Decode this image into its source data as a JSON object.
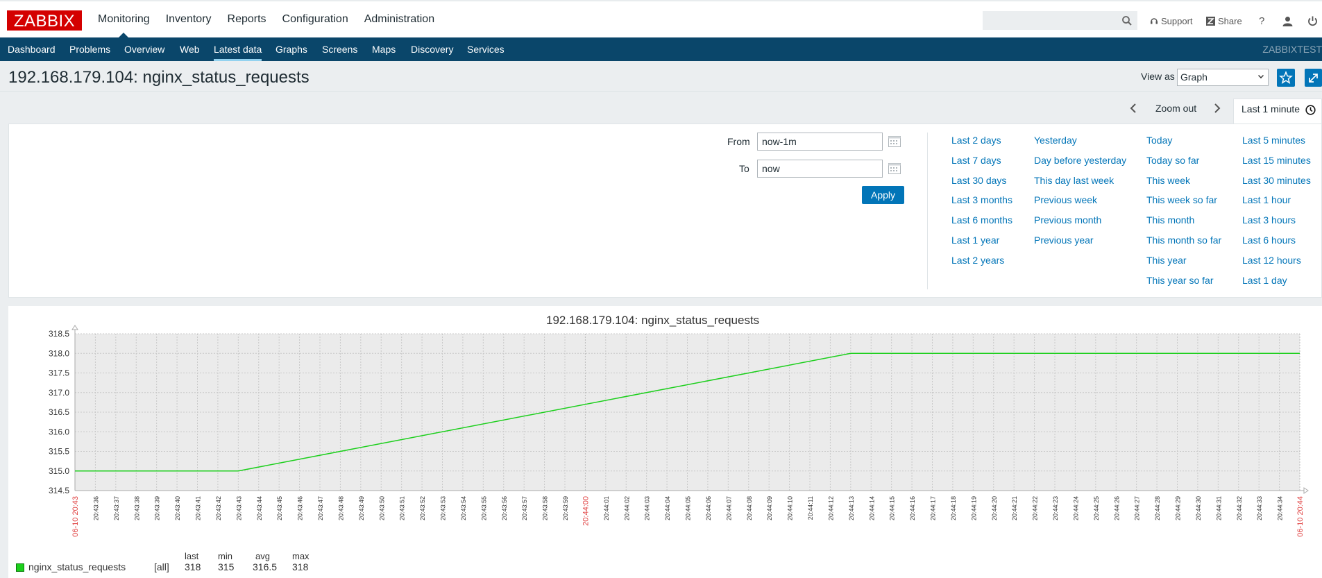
{
  "header": {
    "logo": "ZABBIX",
    "nav": [
      "Monitoring",
      "Inventory",
      "Reports",
      "Configuration",
      "Administration"
    ],
    "support": "Support",
    "share": "Share",
    "help": "?"
  },
  "subnav": {
    "items": [
      "Dashboard",
      "Problems",
      "Overview",
      "Web",
      "Latest data",
      "Graphs",
      "Screens",
      "Maps",
      "Discovery",
      "Services"
    ],
    "active": "Latest data",
    "brand": "ZABBIXTEST"
  },
  "page": {
    "title": "192.168.179.104: nginx_status_requests",
    "view_as_label": "View as",
    "view_as_value": "Graph"
  },
  "time": {
    "zoom_out": "Zoom out",
    "period_tab": "Last 1 minute",
    "from_label": "From",
    "from_value": "now-1m",
    "to_label": "To",
    "to_value": "now",
    "apply": "Apply",
    "quick_columns": [
      [
        "Last 2 days",
        "Last 7 days",
        "Last 30 days",
        "Last 3 months",
        "Last 6 months",
        "Last 1 year",
        "Last 2 years"
      ],
      [
        "Yesterday",
        "Day before yesterday",
        "This day last week",
        "Previous week",
        "Previous month",
        "Previous year"
      ],
      [
        "Today",
        "Today so far",
        "This week",
        "This week so far",
        "This month",
        "This month so far",
        "This year",
        "This year so far"
      ],
      [
        "Last 5 minutes",
        "Last 15 minutes",
        "Last 30 minutes",
        "Last 1 hour",
        "Last 3 hours",
        "Last 6 hours",
        "Last 12 hours",
        "Last 1 day"
      ]
    ]
  },
  "chart_data": {
    "type": "line",
    "title": "192.168.179.104: nginx_status_requests",
    "ylim": [
      314.5,
      318.5
    ],
    "yticks": [
      "318.5",
      "318.0",
      "317.5",
      "317.0",
      "316.5",
      "316.0",
      "315.5",
      "315.0",
      "314.5"
    ],
    "x_start_label": "06-10 20:43",
    "x_mid_label": "20:44:00",
    "x_end_label": "06-10 20:44",
    "xticks": [
      "20:43:36",
      "20:43:37",
      "20:43:38",
      "20:43:39",
      "20:43:40",
      "20:43:41",
      "20:43:42",
      "20:43:43",
      "20:43:44",
      "20:43:45",
      "20:43:46",
      "20:43:47",
      "20:43:48",
      "20:43:49",
      "20:43:50",
      "20:43:51",
      "20:43:52",
      "20:43:53",
      "20:43:54",
      "20:43:55",
      "20:43:56",
      "20:43:57",
      "20:43:58",
      "20:43:59",
      "20:44:00",
      "20:44:01",
      "20:44:02",
      "20:44:03",
      "20:44:04",
      "20:44:05",
      "20:44:06",
      "20:44:07",
      "20:44:08",
      "20:44:09",
      "20:44:10",
      "20:44:11",
      "20:44:12",
      "20:44:13",
      "20:44:14",
      "20:44:15",
      "20:44:16",
      "20:44:17",
      "20:44:18",
      "20:44:19",
      "20:44:20",
      "20:44:21",
      "20:44:22",
      "20:44:23",
      "20:44:24",
      "20:44:25",
      "20:44:26",
      "20:44:27",
      "20:44:28",
      "20:44:29",
      "20:44:30",
      "20:44:31",
      "20:44:32",
      "20:44:33",
      "20:44:34"
    ],
    "series": [
      {
        "name": "nginx_status_requests",
        "color": "#1ccf1c",
        "points": [
          [
            "20:43:35",
            315
          ],
          [
            "20:43:43",
            315
          ],
          [
            "20:44:13",
            318
          ],
          [
            "20:44:35",
            318
          ]
        ]
      }
    ],
    "legend": {
      "headers": [
        "last",
        "min",
        "avg",
        "max"
      ],
      "func": "[all]",
      "values": [
        "318",
        "315",
        "316.5",
        "318"
      ]
    }
  }
}
